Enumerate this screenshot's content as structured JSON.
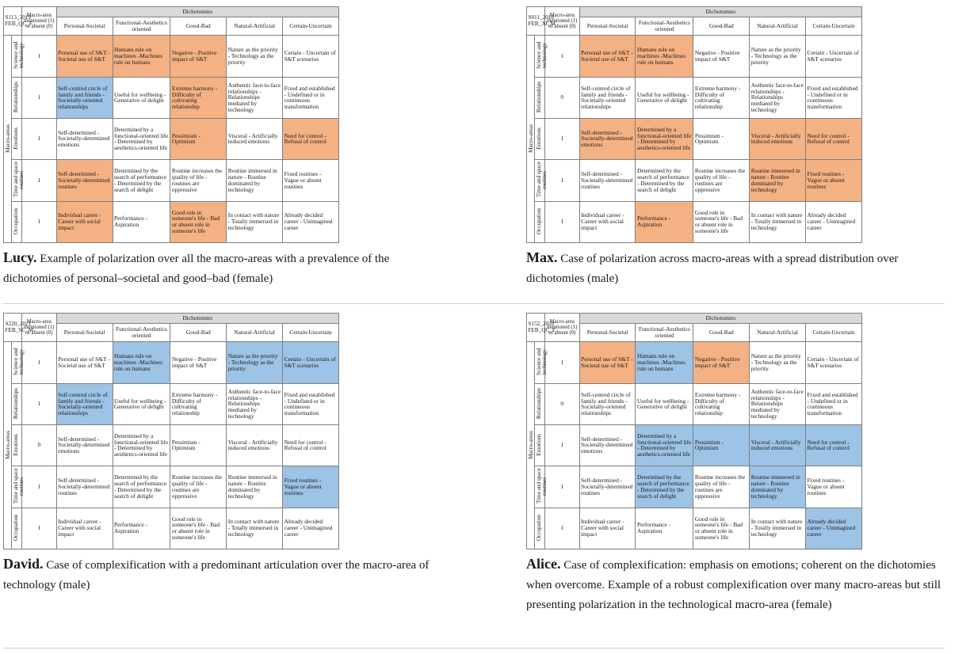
{
  "header": {
    "mention": "Macro-area mentioned (1) or absent (0)",
    "dichotomies": "Dichotomies",
    "macro_areas": "Macro-areas",
    "columns": [
      "Personal-Societal",
      "Functional-Aesthetics oriented",
      "Good-Bad",
      "Natural-Artificial",
      "Certain-Uncertain"
    ]
  },
  "rows": [
    {
      "label": "Science and technology",
      "cells": [
        "Personal use of S&T - Societal use of S&T",
        "Humans rule on machines -Machines rule on humans",
        "Negative - Positive impact of S&T",
        "Nature as the priority - Technology as the priority",
        "Certain - Uncertain of S&T scenarios"
      ]
    },
    {
      "label": "Relationships",
      "cells": [
        "Self-centred circle of family and friends - Societally-oriented relationships",
        "Useful for wellbeing - Generative of delight",
        "Extreme harmony - Difficulty of cultivating relationship",
        "Authentic face-to-face relationships - Relationships mediated by technology",
        "Fixed and established - Undefined or in continuous transformation"
      ]
    },
    {
      "label": "Emotions",
      "cells": [
        "Self-determined - Societally-determined emotions",
        "Determined by a functional-oriented life - Determined by aesthetics-oriented life",
        "Pessimism - Optimism",
        "Visceral - Artificially induced emotions",
        "Need for control - Refusal of control"
      ]
    },
    {
      "label": "Time and space routines",
      "cells": [
        "Self-determined - Societally-determined routines",
        "Determined by the search of performance - Determined by the search of delight",
        "Routine increases the quality of life - routines are oppressive",
        "Routine immersed in nature - Routine dominated by technology",
        "Fixed routines - Vague or absent routines"
      ]
    },
    {
      "label": "Occupation",
      "cells": [
        "Individual career - Career with social impact",
        "Performance - Aspiration",
        "Good role in someone's life - Bad or absent role in someone's life",
        "In contact with nature - Totally immersed in technology",
        "Already decided career - Unimagined career"
      ]
    }
  ],
  "colors": {
    "orange": "#f4b183",
    "blue": "#9dc3e6",
    "none": "#ffffff"
  },
  "panels": [
    {
      "id": "S113_2019 FEB_QC_F",
      "mentions": [
        "1",
        "1",
        "1",
        "1",
        "1"
      ],
      "highlights": [
        [
          "orange",
          "orange",
          "orange",
          "none",
          "none"
        ],
        [
          "blue",
          "none",
          "orange",
          "none",
          "none"
        ],
        [
          "none",
          "none",
          "orange",
          "none",
          "orange"
        ],
        [
          "orange",
          "none",
          "none",
          "none",
          "none"
        ],
        [
          "orange",
          "none",
          "orange",
          "none",
          "none"
        ]
      ],
      "caption_name": "Lucy.",
      "caption_text": " Example of polarization over all the macro-areas with a prevalence of the dichotomies of personal–societal and good–bad (female)"
    },
    {
      "id": "S011_2018 FEB_AI_M",
      "mentions": [
        "1",
        "0",
        "1",
        "1",
        "1"
      ],
      "highlights": [
        [
          "orange",
          "orange",
          "none",
          "none",
          "none"
        ],
        [
          "none",
          "none",
          "none",
          "none",
          "none"
        ],
        [
          "orange",
          "orange",
          "none",
          "orange",
          "orange"
        ],
        [
          "none",
          "none",
          "none",
          "orange",
          "orange"
        ],
        [
          "none",
          "orange",
          "none",
          "none",
          "none"
        ]
      ],
      "caption_name": "Max.",
      "caption_text": " Case of polarization across macro-areas with a spread distribution over dichotomies (male)"
    },
    {
      "id": "S220_2021 FEB_SC_M",
      "mentions": [
        "1",
        "1",
        "0",
        "1",
        "1"
      ],
      "highlights": [
        [
          "none",
          "blue",
          "none",
          "blue",
          "blue"
        ],
        [
          "blue",
          "none",
          "none",
          "none",
          "none"
        ],
        [
          "none",
          "none",
          "none",
          "none",
          "none"
        ],
        [
          "none",
          "none",
          "none",
          "none",
          "blue"
        ],
        [
          "none",
          "none",
          "none",
          "none",
          "none"
        ]
      ],
      "caption_name": "David.",
      "caption_text": " Case of complexification with a predominant articulation over the macro-area of technology (male)"
    },
    {
      "id": "S152_2020 FEB_QC_F",
      "mentions": [
        "1",
        "0",
        "1",
        "1",
        "1"
      ],
      "highlights": [
        [
          "orange",
          "blue",
          "orange",
          "none",
          "none"
        ],
        [
          "none",
          "none",
          "none",
          "none",
          "none"
        ],
        [
          "none",
          "blue",
          "blue",
          "blue",
          "blue"
        ],
        [
          "none",
          "blue",
          "none",
          "blue",
          "none"
        ],
        [
          "none",
          "none",
          "none",
          "none",
          "blue"
        ]
      ],
      "caption_name": "Alice.",
      "caption_text": " Case of complexification: emphasis on emotions; coherent on the dichotomies when overcome. Example of a robust complexification over many macro-areas but still presenting polarization in the technological macro-area (female)"
    }
  ]
}
